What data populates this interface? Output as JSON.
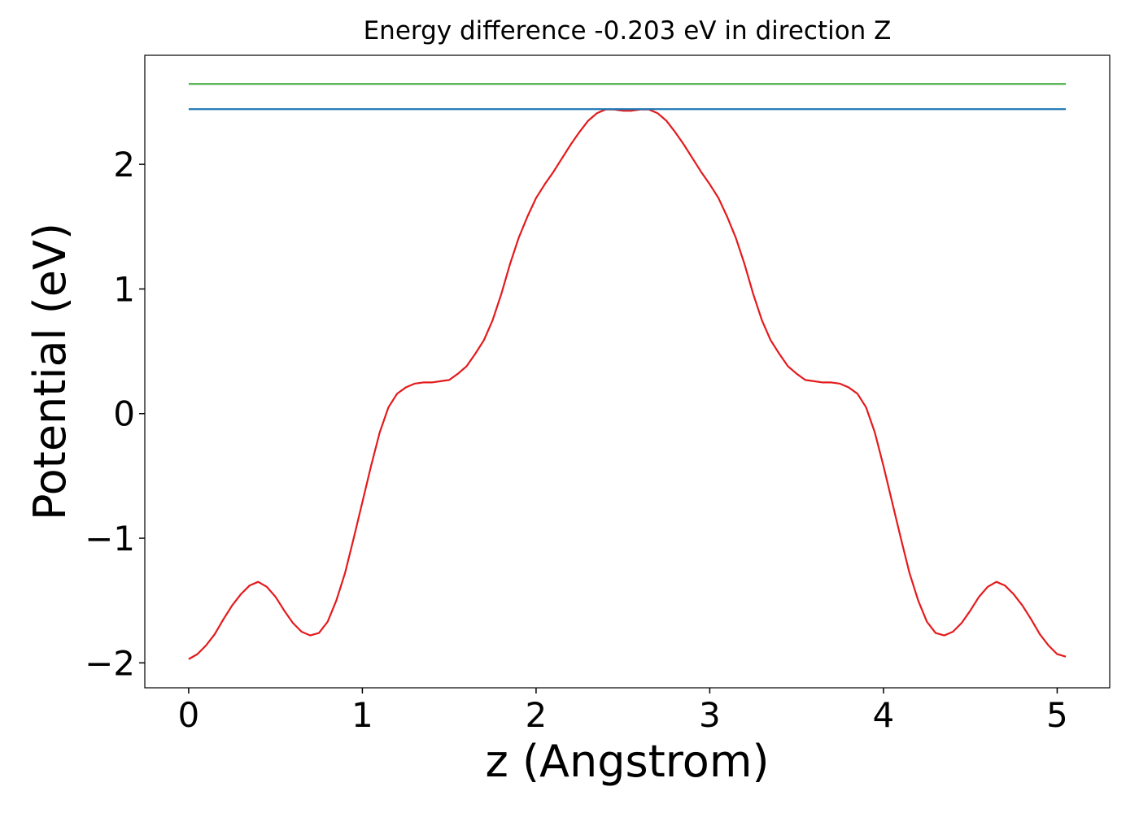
{
  "chart_data": {
    "type": "line",
    "title": "Energy difference -0.203 eV in direction Z",
    "xlabel": "z (Angstrom)",
    "ylabel": "Potential (eV)",
    "xlim": [
      -0.2525,
      5.3025
    ],
    "ylim": [
      -2.2,
      2.875
    ],
    "xticks": [
      0,
      1,
      2,
      3,
      4,
      5
    ],
    "yticks": [
      {
        "value": -2,
        "label": "−2"
      },
      {
        "value": -1,
        "label": "−1"
      },
      0,
      1,
      2
    ],
    "grid": false,
    "series": [
      {
        "color": "#e41a1c",
        "x": [
          0,
          0.05,
          0.1,
          0.15,
          0.2,
          0.25,
          0.3,
          0.35,
          0.4,
          0.45,
          0.5,
          0.55,
          0.6,
          0.65,
          0.7,
          0.75,
          0.8,
          0.85,
          0.9,
          0.95,
          1,
          1.05,
          1.1,
          1.15,
          1.2,
          1.25,
          1.3,
          1.35,
          1.4,
          1.45,
          1.5,
          1.55,
          1.6,
          1.65,
          1.7,
          1.75,
          1.8,
          1.85,
          1.9,
          1.95,
          2,
          2.05,
          2.1,
          2.15,
          2.2,
          2.25,
          2.3,
          2.35,
          2.4,
          2.45,
          2.5,
          2.55,
          2.6,
          2.65,
          2.7,
          2.75,
          2.8,
          2.85,
          2.9,
          2.95,
          3,
          3.05,
          3.1,
          3.15,
          3.2,
          3.25,
          3.3,
          3.35,
          3.4,
          3.45,
          3.5,
          3.55,
          3.6,
          3.65,
          3.7,
          3.75,
          3.8,
          3.85,
          3.9,
          3.95,
          4,
          4.05,
          4.1,
          4.15,
          4.2,
          4.25,
          4.3,
          4.35,
          4.4,
          4.45,
          4.5,
          4.55,
          4.6,
          4.65,
          4.7,
          4.75,
          4.8,
          4.85,
          4.9,
          4.95,
          5,
          5.05
        ],
        "values": [
          -1.97,
          -1.93,
          -1.86,
          -1.77,
          -1.65,
          -1.54,
          -1.45,
          -1.38,
          -1.35,
          -1.39,
          -1.47,
          -1.58,
          -1.68,
          -1.75,
          -1.78,
          -1.76,
          -1.67,
          -1.5,
          -1.28,
          -1.0,
          -0.71,
          -0.42,
          -0.15,
          0.05,
          0.16,
          0.21,
          0.24,
          0.25,
          0.25,
          0.26,
          0.27,
          0.32,
          0.38,
          0.48,
          0.59,
          0.75,
          0.96,
          1.2,
          1.41,
          1.58,
          1.73,
          1.84,
          1.94,
          2.05,
          2.16,
          2.26,
          2.35,
          2.41,
          2.44,
          2.44,
          2.43,
          2.43,
          2.44,
          2.44,
          2.41,
          2.35,
          2.26,
          2.16,
          2.05,
          1.94,
          1.84,
          1.73,
          1.58,
          1.41,
          1.2,
          0.96,
          0.75,
          0.59,
          0.48,
          0.38,
          0.32,
          0.27,
          0.26,
          0.25,
          0.25,
          0.24,
          0.21,
          0.16,
          0.05,
          -0.15,
          -0.42,
          -0.71,
          -1.0,
          -1.28,
          -1.5,
          -1.67,
          -1.76,
          -1.78,
          -1.75,
          -1.68,
          -1.58,
          -1.47,
          -1.39,
          -1.35,
          -1.38,
          -1.45,
          -1.54,
          -1.65,
          -1.77,
          -1.86,
          -1.93,
          -1.95
        ]
      },
      {
        "color": "#4daf4a",
        "x": [
          0,
          5.05
        ],
        "values": [
          2.645,
          2.645
        ]
      },
      {
        "color": "#1f77b4",
        "x": [
          0,
          5.05
        ],
        "values": [
          2.443,
          2.443
        ]
      }
    ]
  }
}
